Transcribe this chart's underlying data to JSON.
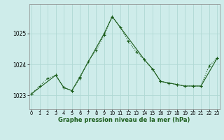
{
  "xlabel": "Graphe pression niveau de la mer (hPa)",
  "background_color": "#ceecea",
  "grid_color": "#b0d8d4",
  "line_color": "#1a5c1a",
  "x_ticks": [
    0,
    1,
    2,
    3,
    4,
    5,
    6,
    7,
    8,
    9,
    10,
    11,
    12,
    13,
    14,
    15,
    16,
    17,
    18,
    19,
    20,
    21,
    22,
    23
  ],
  "y_ticks": [
    1023,
    1024,
    1025
  ],
  "ylim": [
    1022.55,
    1025.95
  ],
  "xlim": [
    -0.3,
    23.3
  ],
  "series1_x": [
    0,
    1,
    2,
    3,
    4,
    5,
    6,
    7,
    8,
    9,
    10,
    11,
    12,
    13,
    14,
    15,
    16,
    17,
    18,
    19,
    20,
    21,
    22,
    23
  ],
  "series1_y": [
    1023.05,
    1023.3,
    1023.55,
    1023.65,
    1023.25,
    1023.15,
    1023.55,
    1024.1,
    1024.45,
    1024.95,
    1025.55,
    1025.2,
    1024.75,
    1024.4,
    1024.15,
    1023.85,
    1023.45,
    1023.4,
    1023.35,
    1023.3,
    1023.3,
    1023.3,
    1023.95,
    1024.2
  ],
  "series2_x": [
    0,
    3,
    4,
    5,
    6,
    9,
    10,
    14,
    15,
    16,
    17,
    18,
    19,
    20,
    21,
    23
  ],
  "series2_y": [
    1023.05,
    1023.65,
    1023.25,
    1023.15,
    1023.6,
    1025.0,
    1025.55,
    1024.15,
    1023.85,
    1023.45,
    1023.4,
    1023.35,
    1023.3,
    1023.3,
    1023.3,
    1024.2
  ]
}
